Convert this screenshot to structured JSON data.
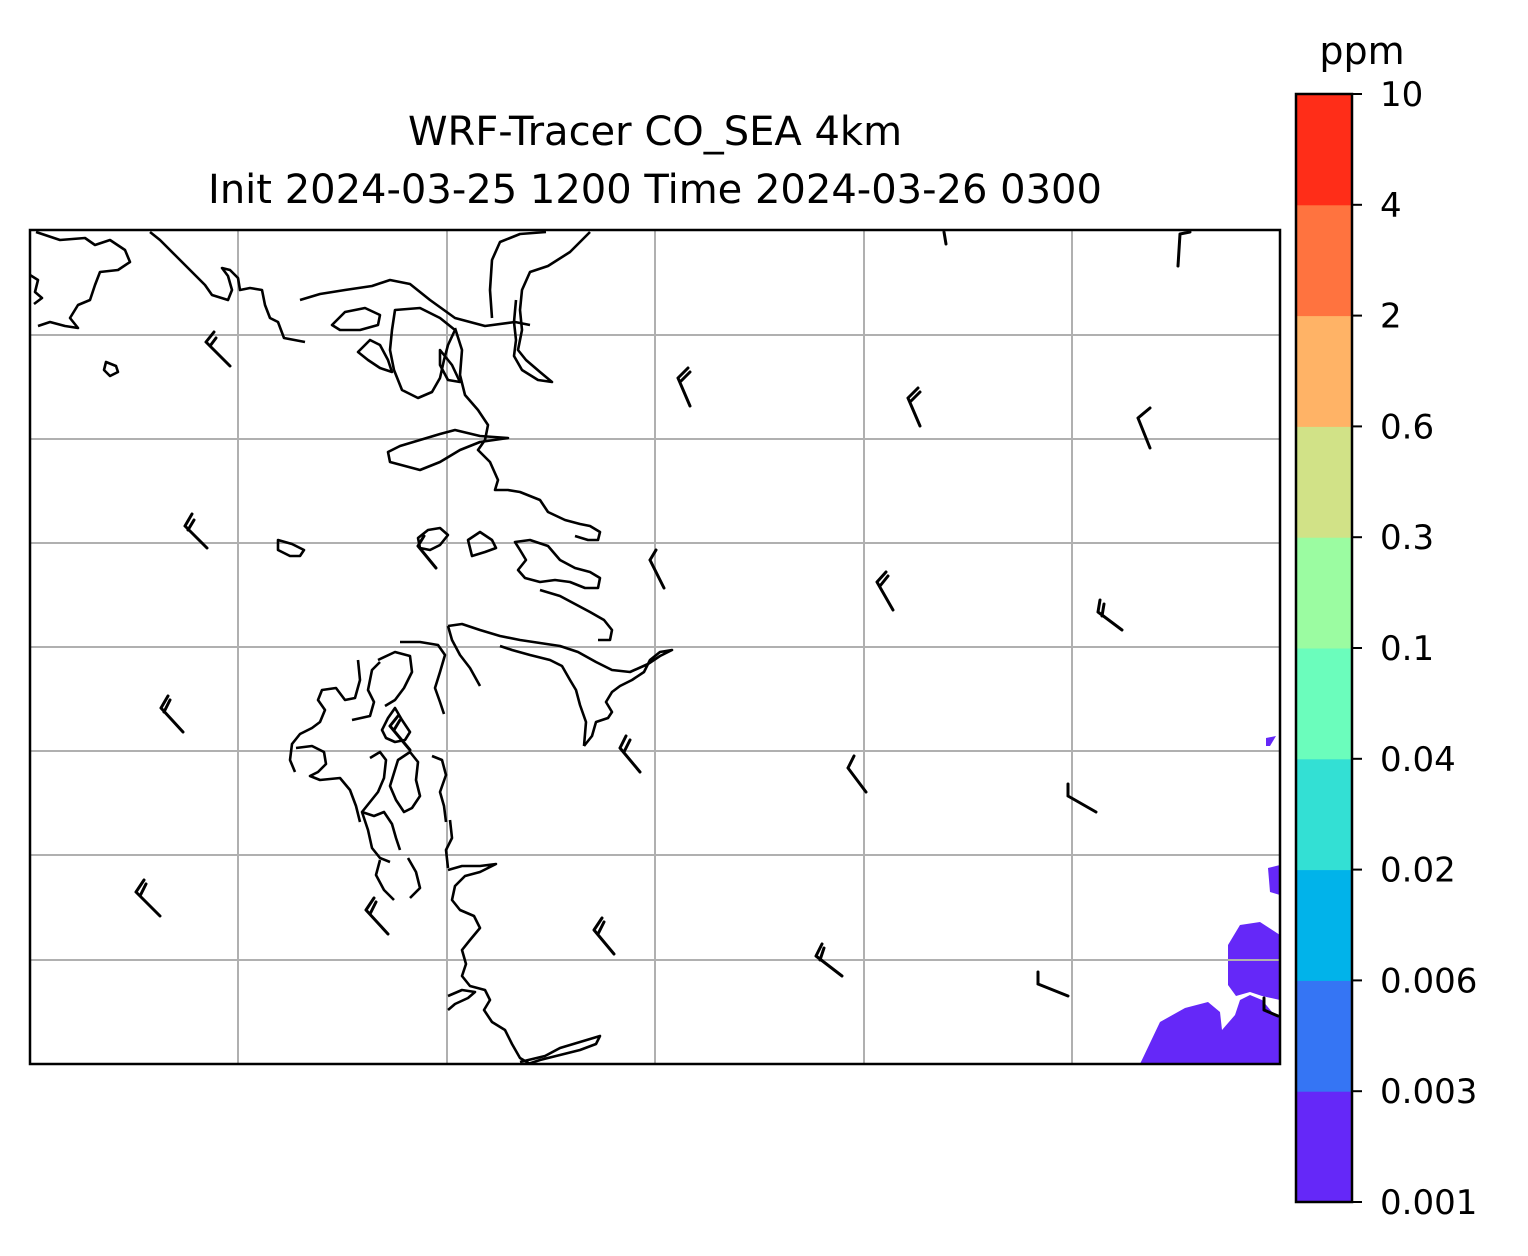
{
  "title": {
    "line1": "WRF-Tracer CO_SEA 4km",
    "line2": "Init 2024-03-25 1200 Time 2024-03-26 0300"
  },
  "colorbar": {
    "unit": "ppm",
    "levels": [
      "0.001",
      "0.003",
      "0.006",
      "0.02",
      "0.04",
      "0.1",
      "0.3",
      "0.6",
      "2",
      "4",
      "10"
    ],
    "colors": [
      "#6528f8",
      "#3575f4",
      "#01b3ea",
      "#33e0d4",
      "#6bfdbc",
      "#9bfca1",
      "#d1e287",
      "#ffb366",
      "#ff733f",
      "#ff2d18"
    ]
  },
  "map": {
    "gridlines": true,
    "wind_barbs": "present",
    "plume_color": "#6528f8"
  }
}
